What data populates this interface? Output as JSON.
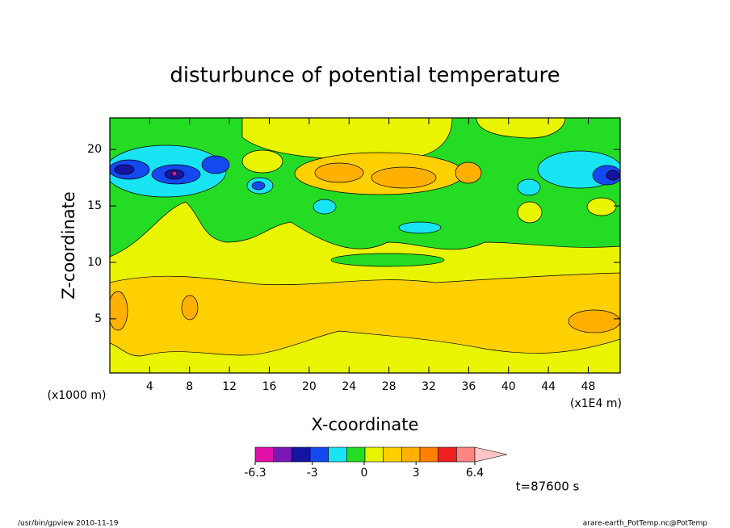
{
  "chart_data": {
    "type": "contour",
    "title": "disturbunce of potential temperature",
    "xlabel": "X-coordinate",
    "ylabel": "Z-coordinate",
    "xunit": "(x1E4 m)",
    "yunit": "(x1000 m)",
    "xlim": [
      0,
      51.2
    ],
    "xticks": [
      4,
      8,
      12,
      16,
      20,
      24,
      28,
      32,
      36,
      40,
      44,
      48
    ],
    "ylim": [
      0.2,
      22.8
    ],
    "yticks": [
      5,
      10,
      15,
      20
    ],
    "colorbar": {
      "clim": [
        -6.3,
        6.4
      ],
      "colors": [
        "#e010a8",
        "#7a18b4",
        "#1414a0",
        "#1448f0",
        "#18e4f4",
        "#24dc24",
        "#e8f400",
        "#ffd000",
        "#ffb000",
        "#ff8000",
        "#f02020",
        "#ff8484"
      ],
      "extend_color": "#ffc4c4",
      "ticks": [
        -6.3,
        -3,
        0,
        3,
        6.4
      ]
    },
    "annotation": "t=87600 s",
    "footer_left": "/usr/bin/gpview  2010-11-19",
    "footer_right": "arare-earth_PotTemp.nc@PotTemp"
  }
}
